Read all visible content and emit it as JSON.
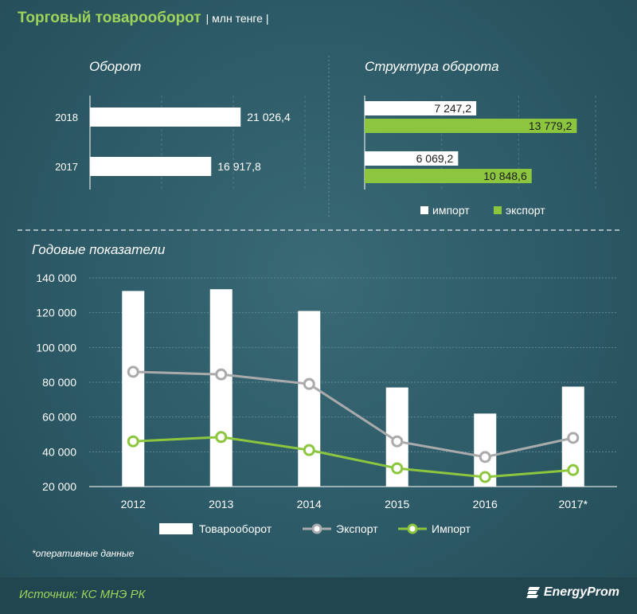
{
  "header": {
    "title": "Торговый товарооборот",
    "unit": "| млн тенге |"
  },
  "colors": {
    "accent_green": "#8cc63f",
    "bar_white": "#ffffff",
    "export_line": "#a9aaab",
    "background": "#2b5561"
  },
  "chart_data": [
    {
      "id": "turnover",
      "type": "bar",
      "orientation": "horizontal",
      "title": "Оборот",
      "categories": [
        "2018",
        "2017"
      ],
      "values": [
        21026.4,
        16917.8
      ],
      "value_labels": [
        "21 026,4",
        "16 917,8"
      ],
      "xlim": [
        0,
        30000
      ]
    },
    {
      "id": "structure",
      "type": "bar",
      "orientation": "horizontal",
      "title": "Структура оборота",
      "categories": [
        "2018",
        "2017"
      ],
      "series": [
        {
          "name": "импорт",
          "values": [
            7247.2,
            6069.2
          ],
          "value_labels": [
            "7 247,2",
            "6 069,2"
          ],
          "color": "#ffffff"
        },
        {
          "name": "экспорт",
          "values": [
            13779.2,
            10848.6
          ],
          "value_labels": [
            "13 779,2",
            "10 848,6"
          ],
          "color": "#8cc63f"
        }
      ],
      "legend": [
        "импорт",
        "экспорт"
      ],
      "legend_position": "bottom",
      "xlim": [
        0,
        15000
      ]
    },
    {
      "id": "annual",
      "type": "bar",
      "title": "Годовые показатели",
      "categories": [
        "2012",
        "2013",
        "2014",
        "2015",
        "2016",
        "2017*"
      ],
      "series": [
        {
          "name": "Товарооборот",
          "kind": "bar",
          "values": [
            132500,
            133500,
            121000,
            77000,
            62000,
            77500
          ],
          "color": "#ffffff"
        },
        {
          "name": "Экспорт",
          "kind": "line",
          "values": [
            86000,
            84500,
            79000,
            46000,
            37000,
            48000
          ],
          "color": "#a9aaab"
        },
        {
          "name": "Импорт",
          "kind": "line",
          "values": [
            46000,
            48500,
            41000,
            30500,
            25500,
            29500
          ],
          "color": "#8cc63f"
        }
      ],
      "yticks": [
        20000,
        40000,
        60000,
        80000,
        100000,
        120000,
        140000
      ],
      "ytick_labels": [
        "20 000",
        "40 000",
        "60 000",
        "80 000",
        "100 000",
        "120 000",
        "140 000"
      ],
      "ylim": [
        20000,
        140000
      ],
      "legend_position": "bottom",
      "grid": true
    }
  ],
  "footnote": "*оперативные данные",
  "source": "Источник: КС МНЭ РК",
  "logo": {
    "text": "EnergyProm",
    "icon": "energyprom-logo-icon"
  }
}
